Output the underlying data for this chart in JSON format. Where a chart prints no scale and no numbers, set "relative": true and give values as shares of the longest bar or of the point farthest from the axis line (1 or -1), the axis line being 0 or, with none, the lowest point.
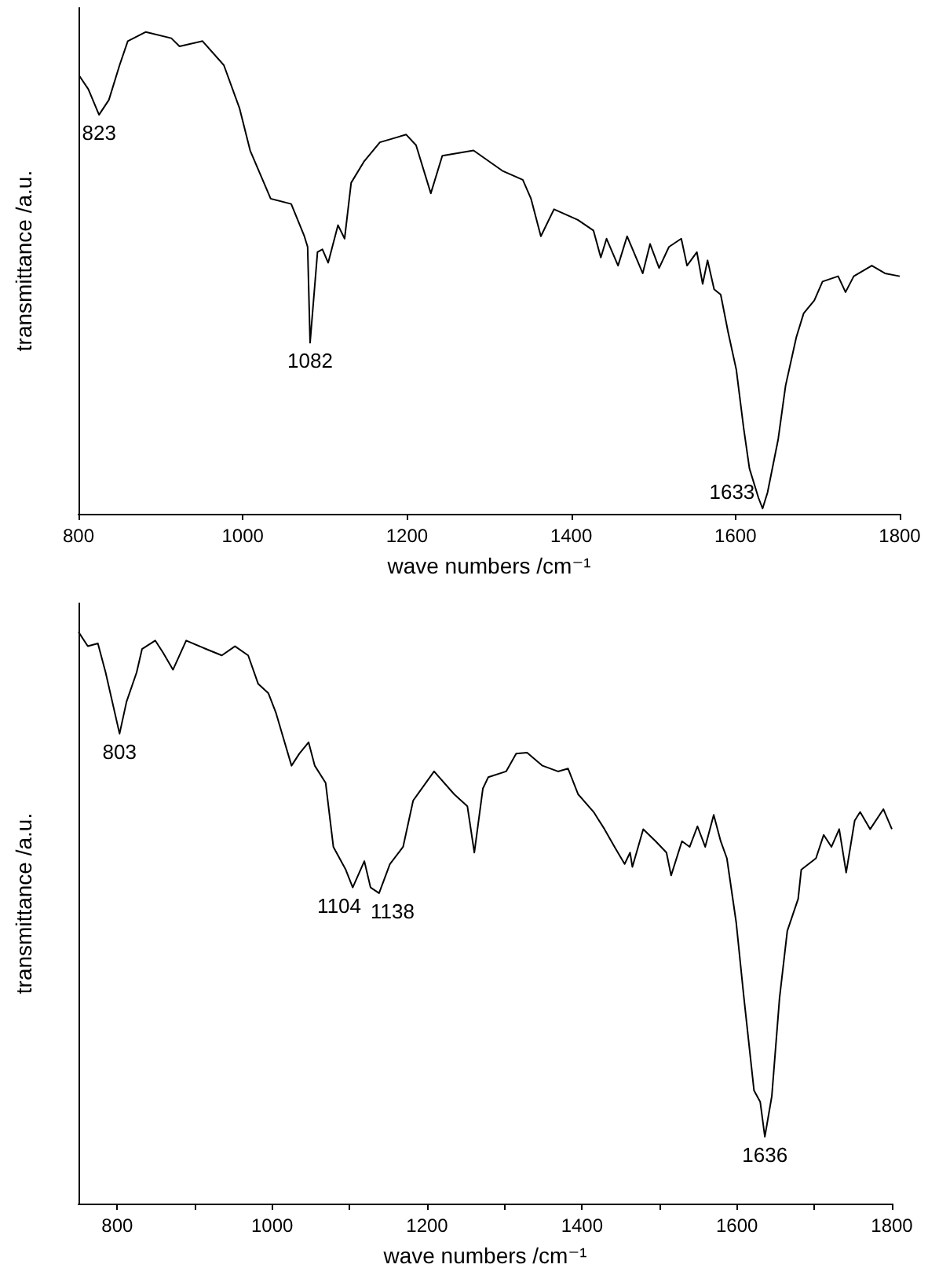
{
  "chart_data": [
    {
      "type": "line",
      "relative": true,
      "tick_labels": "x",
      "xlabel": "wave numbers /cm⁻¹",
      "ylabel": "transmittance /a.u.",
      "xlim": [
        800,
        1800
      ],
      "xticks": [
        800,
        1000,
        1200,
        1400,
        1600,
        1800
      ],
      "x": [
        801,
        812,
        825,
        837,
        850,
        860,
        882,
        913,
        923,
        951,
        977,
        996,
        1009,
        1034,
        1059,
        1075,
        1079,
        1082,
        1091,
        1097,
        1104,
        1116,
        1124,
        1132,
        1148,
        1167,
        1199,
        1211,
        1229,
        1243,
        1281,
        1316,
        1341,
        1351,
        1363,
        1379,
        1408,
        1427,
        1436,
        1443,
        1457,
        1468,
        1487,
        1496,
        1507,
        1519,
        1534,
        1541,
        1553,
        1560,
        1566,
        1574,
        1582,
        1591,
        1601,
        1610,
        1617,
        1628,
        1633,
        1639,
        1652,
        1661,
        1674,
        1683,
        1696,
        1706,
        1725,
        1734,
        1744,
        1766,
        1782,
        1800
      ],
      "series": [
        {
          "color": "#000000",
          "values": [
            0.909,
            0.881,
            0.828,
            0.859,
            0.931,
            0.981,
            1.0,
            0.987,
            0.97,
            0.981,
            0.931,
            0.842,
            0.754,
            0.654,
            0.643,
            0.576,
            0.554,
            0.355,
            0.543,
            0.549,
            0.521,
            0.599,
            0.571,
            0.687,
            0.732,
            0.771,
            0.787,
            0.765,
            0.665,
            0.743,
            0.754,
            0.712,
            0.693,
            0.654,
            0.576,
            0.632,
            0.61,
            0.588,
            0.532,
            0.571,
            0.515,
            0.576,
            0.499,
            0.56,
            0.51,
            0.554,
            0.571,
            0.515,
            0.543,
            0.477,
            0.526,
            0.466,
            0.455,
            0.377,
            0.299,
            0.177,
            0.094,
            0.033,
            0.011,
            0.044,
            0.155,
            0.266,
            0.366,
            0.416,
            0.443,
            0.482,
            0.493,
            0.46,
            0.493,
            0.515,
            0.499,
            0.493
          ]
        }
      ],
      "annotations": [
        {
          "text": "823",
          "x": 825,
          "y": 0.828
        },
        {
          "text": "1082",
          "x": 1082,
          "y": 0.355
        },
        {
          "text": "1633",
          "x": 1633,
          "y": 0.011
        }
      ]
    },
    {
      "type": "line",
      "relative": true,
      "tick_labels": "x",
      "xlabel": "wave numbers /cm⁻¹",
      "ylabel": "transmittance /a.u.",
      "xlim": [
        750,
        1800
      ],
      "xticks": [
        800,
        {
          "value": 900,
          "label": null
        },
        1000,
        {
          "value": 1100,
          "label": null
        },
        1200,
        {
          "value": 1300,
          "label": null
        },
        1400,
        {
          "value": 1500,
          "label": null
        },
        1600,
        {
          "value": 1700,
          "label": null
        },
        1800
      ],
      "x": [
        750,
        762,
        775,
        785,
        803,
        812,
        825,
        832,
        849,
        859,
        872,
        889,
        915,
        935,
        952,
        969,
        982,
        995,
        1005,
        1015,
        1025,
        1035,
        1047,
        1055,
        1069,
        1079,
        1095,
        1104,
        1119,
        1127,
        1138,
        1152,
        1169,
        1182,
        1209,
        1235,
        1252,
        1261,
        1272,
        1279,
        1302,
        1315,
        1329,
        1349,
        1369,
        1382,
        1395,
        1415,
        1429,
        1442,
        1455,
        1462,
        1465,
        1479,
        1495,
        1509,
        1515,
        1529,
        1539,
        1549,
        1559,
        1570,
        1579,
        1587,
        1599,
        1609,
        1622,
        1630,
        1636,
        1645,
        1655,
        1665,
        1679,
        1683,
        1702,
        1712,
        1722,
        1732,
        1741,
        1752,
        1759,
        1772,
        1789,
        1800
      ],
      "series": [
        {
          "color": "#000000",
          "values": [
            1.0,
            0.975,
            0.98,
            0.929,
            0.822,
            0.878,
            0.929,
            0.97,
            0.985,
            0.964,
            0.934,
            0.985,
            0.97,
            0.959,
            0.975,
            0.959,
            0.909,
            0.893,
            0.858,
            0.812,
            0.766,
            0.787,
            0.807,
            0.766,
            0.736,
            0.624,
            0.584,
            0.553,
            0.599,
            0.553,
            0.543,
            0.594,
            0.624,
            0.705,
            0.756,
            0.716,
            0.695,
            0.614,
            0.726,
            0.746,
            0.756,
            0.787,
            0.789,
            0.766,
            0.756,
            0.761,
            0.716,
            0.685,
            0.655,
            0.624,
            0.594,
            0.614,
            0.589,
            0.655,
            0.634,
            0.614,
            0.574,
            0.634,
            0.624,
            0.66,
            0.624,
            0.68,
            0.634,
            0.604,
            0.492,
            0.36,
            0.198,
            0.178,
            0.117,
            0.188,
            0.36,
            0.477,
            0.533,
            0.584,
            0.604,
            0.645,
            0.624,
            0.655,
            0.579,
            0.67,
            0.685,
            0.655,
            0.69,
            0.655
          ]
        }
      ],
      "annotations": [
        {
          "text": "803",
          "x": 803,
          "y": 0.822
        },
        {
          "text": "1104",
          "x": 1104,
          "y": 0.553
        },
        {
          "text": "1138",
          "x": 1138,
          "y": 0.543
        },
        {
          "text": "1636",
          "x": 1636,
          "y": 0.117
        }
      ]
    }
  ]
}
